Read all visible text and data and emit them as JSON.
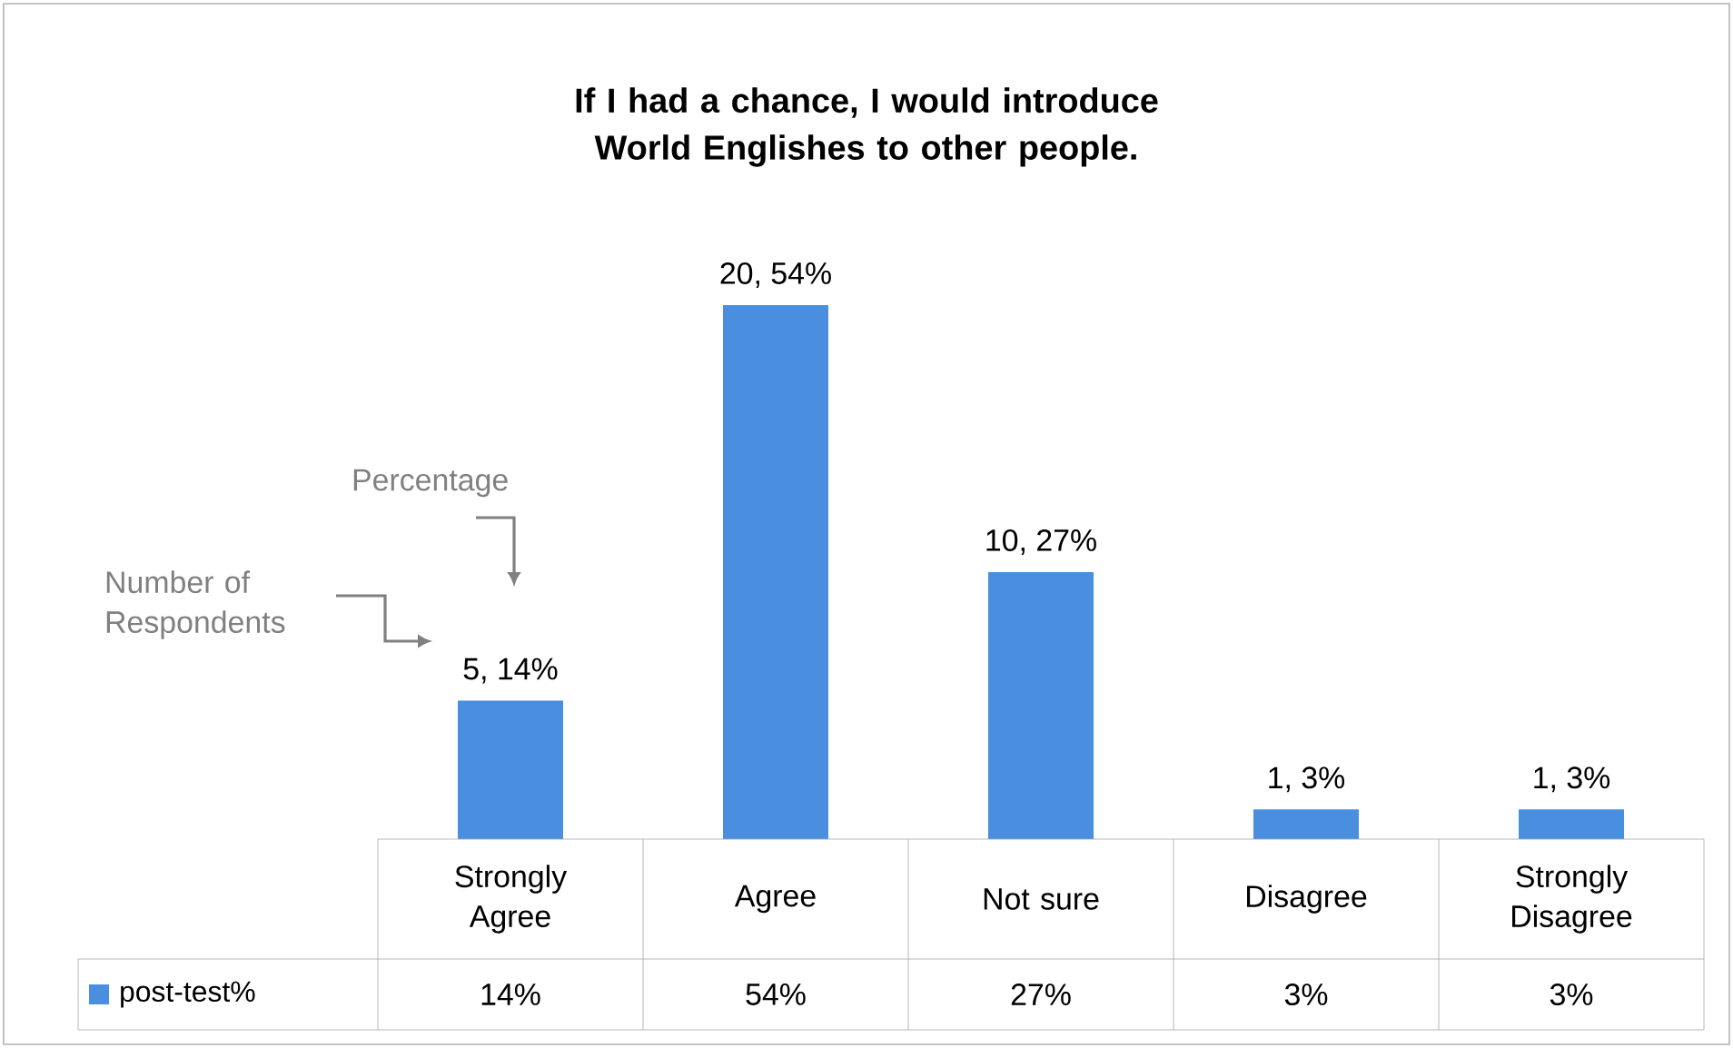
{
  "chart_data": {
    "type": "bar",
    "title": "If I had a chance, I would introduce World Englishes to other people.",
    "categories": [
      "Strongly Agree",
      "Agree",
      "Not sure",
      "Disagree",
      "Strongly Disagree"
    ],
    "series": [
      {
        "name": "post-test%",
        "color": "#4a8ee0",
        "values": [
          14,
          54,
          27,
          3,
          3
        ],
        "value_labels": [
          "5, 14%",
          "20, 54%",
          "10, 27%",
          "1, 3%",
          "1, 3%"
        ]
      }
    ],
    "annotations": [
      "Percentage",
      "Number of Respondents",
      "14%",
      "54%",
      "27%",
      "3%",
      "3%"
    ],
    "legend": "bottom"
  }
}
